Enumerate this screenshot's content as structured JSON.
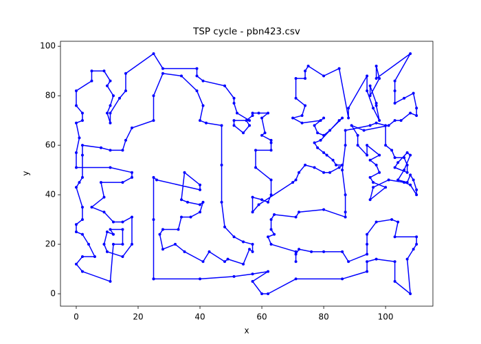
{
  "chart_data": {
    "type": "line",
    "title": "TSP cycle - pbn423.csv",
    "xlabel": "x",
    "ylabel": "y",
    "color": "#0000ff",
    "markers": true,
    "x": [
      25,
      40,
      51,
      57,
      62,
      57,
      60,
      62,
      71,
      86,
      94,
      94,
      97,
      103,
      103,
      108,
      107,
      109,
      110,
      110,
      103,
      104,
      102,
      97,
      94,
      94,
      94,
      88,
      86,
      80,
      76,
      72,
      71,
      71,
      71,
      63,
      62,
      64,
      63,
      63,
      64,
      71,
      72,
      80,
      87,
      87,
      87,
      86,
      87,
      87,
      95,
      97,
      100,
      100,
      102,
      103,
      106,
      107,
      107,
      103,
      104,
      107,
      108,
      106,
      104,
      107,
      108,
      109,
      110,
      110,
      108,
      106,
      101,
      96,
      95,
      100,
      96,
      95,
      98,
      97,
      95,
      98,
      94,
      94,
      91,
      91,
      89,
      93,
      101,
      103,
      105,
      108,
      110,
      110,
      109,
      106,
      103,
      103,
      103,
      108,
      97,
      97,
      98,
      95,
      95,
      97,
      97,
      98,
      96,
      94,
      94,
      88,
      88,
      85,
      80,
      75,
      74,
      74,
      71,
      71,
      74,
      73,
      70,
      73,
      79,
      80,
      77,
      78,
      80,
      82,
      86,
      85,
      79,
      77,
      78,
      80,
      81,
      83,
      84,
      86,
      85,
      82,
      80,
      77,
      74,
      72,
      71,
      70,
      59,
      57,
      57,
      60,
      62,
      63,
      63,
      58,
      58,
      63,
      63,
      63,
      60,
      61,
      60,
      62,
      59,
      57,
      57,
      55,
      56,
      54,
      51,
      51,
      56,
      52,
      51,
      51,
      48,
      41,
      39,
      39,
      28,
      25,
      16,
      16,
      14,
      11,
      11,
      10,
      11,
      12,
      10,
      11,
      9,
      5,
      5,
      0,
      0,
      2,
      2,
      0,
      1,
      0,
      0,
      11,
      18,
      18,
      15,
      8,
      9,
      5,
      9,
      12,
      15,
      18,
      18,
      15,
      10,
      9,
      10,
      12,
      11,
      15,
      15,
      12,
      11,
      2,
      0,
      2,
      6,
      4,
      2,
      0,
      0,
      2,
      2,
      0,
      1,
      2,
      2,
      2,
      8,
      11,
      15,
      16,
      18,
      25,
      25,
      28,
      34,
      39,
      41,
      40,
      42,
      47,
      47,
      47,
      48,
      51,
      54,
      57,
      57,
      56,
      54,
      49,
      48,
      43,
      41,
      35,
      32,
      28,
      27,
      28,
      33,
      34,
      37,
      40,
      41,
      40,
      36,
      34,
      35,
      40,
      40,
      26,
      25,
      25,
      25
    ],
    "values": [
      6,
      6,
      7,
      8,
      9,
      5,
      0,
      0,
      6,
      6,
      9,
      13,
      14,
      13,
      5,
      0,
      14,
      18,
      20,
      23,
      23,
      29,
      30,
      29,
      24,
      20,
      16,
      13,
      17,
      17,
      17,
      18,
      16,
      13,
      17,
      20,
      23,
      24,
      26,
      30,
      32,
      31,
      33,
      34,
      31,
      33,
      40,
      50,
      60,
      66,
      68,
      69,
      68,
      60,
      58,
      55,
      55,
      52,
      49,
      51,
      53,
      57,
      56,
      50,
      46,
      45,
      48,
      46,
      42,
      40,
      44,
      45,
      46,
      43,
      38,
      43,
      45,
      47,
      49,
      52,
      54,
      56,
      60,
      56,
      60,
      64,
      68,
      66,
      68,
      70,
      70,
      73,
      72,
      75,
      81,
      79,
      77,
      82,
      86,
      97,
      87,
      92,
      87,
      80,
      84,
      77,
      76,
      70,
      75,
      82,
      88,
      75,
      71,
      91,
      88,
      92,
      90,
      87,
      87,
      79,
      76,
      72,
      71,
      69,
      70,
      71,
      68,
      65,
      64,
      66,
      71,
      70,
      62,
      61,
      59,
      57,
      56,
      54,
      52,
      52,
      51,
      49,
      49,
      51,
      52,
      49,
      46,
      45,
      36,
      33,
      39,
      38,
      37,
      40,
      46,
      51,
      58,
      58,
      61,
      62,
      64,
      65,
      71,
      73,
      73,
      73,
      72,
      70,
      68,
      65,
      68,
      70,
      70,
      73,
      77,
      79,
      84,
      86,
      88,
      91,
      91,
      97,
      89,
      82,
      79,
      73,
      69,
      73,
      76,
      80,
      84,
      86,
      90,
      90,
      86,
      82,
      76,
      73,
      70,
      69,
      63,
      57,
      51,
      51,
      49,
      47,
      45,
      45,
      39,
      35,
      33,
      29,
      29,
      31,
      20,
      15,
      17,
      20,
      25,
      24,
      26,
      26,
      20,
      20,
      5,
      9,
      12,
      15,
      15,
      20,
      24,
      25,
      28,
      30,
      35,
      43,
      45,
      47,
      56,
      60,
      59,
      58,
      58,
      62,
      67,
      70,
      80,
      89,
      88,
      82,
      76,
      70,
      69,
      68,
      52,
      37,
      27,
      23,
      21,
      20,
      17,
      18,
      12,
      14,
      13,
      17,
      13,
      17,
      20,
      18,
      24,
      26,
      26,
      31,
      31,
      33,
      37,
      36,
      37,
      38,
      49,
      44,
      42,
      46,
      47,
      30,
      6
    ],
    "xlim": [
      -5.1,
      115.3
    ],
    "ylim": [
      -5,
      102
    ],
    "xticks": [
      0,
      20,
      40,
      60,
      80,
      100
    ],
    "yticks": [
      0,
      20,
      40,
      60,
      80,
      100
    ]
  }
}
